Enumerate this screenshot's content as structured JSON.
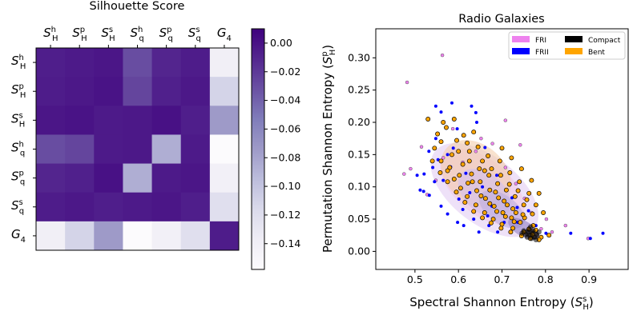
{
  "chart_data": [
    {
      "type": "heatmap",
      "title": "Silhouette Score",
      "row_labels": [
        {
          "base": "S",
          "sub": "H",
          "sup": "h"
        },
        {
          "base": "S",
          "sub": "H",
          "sup": "p"
        },
        {
          "base": "S",
          "sub": "H",
          "sup": "s"
        },
        {
          "base": "S",
          "sub": "q",
          "sup": "h"
        },
        {
          "base": "S",
          "sub": "q",
          "sup": "p"
        },
        {
          "base": "S",
          "sub": "q",
          "sup": "s"
        },
        {
          "base": "G",
          "sub": "4",
          "sup": ""
        }
      ],
      "col_labels": [
        {
          "base": "S",
          "sub": "H",
          "sup": "h"
        },
        {
          "base": "S",
          "sub": "H",
          "sup": "p"
        },
        {
          "base": "S",
          "sub": "H",
          "sup": "s"
        },
        {
          "base": "S",
          "sub": "q",
          "sup": "h"
        },
        {
          "base": "S",
          "sub": "q",
          "sup": "p"
        },
        {
          "base": "S",
          "sub": "q",
          "sup": "s"
        },
        {
          "base": "G",
          "sub": "4",
          "sup": ""
        }
      ],
      "values": [
        [
          -0.006,
          -0.004,
          -0.002,
          -0.03,
          -0.01,
          -0.005,
          -0.14
        ],
        [
          -0.005,
          -0.003,
          0.0,
          -0.026,
          -0.007,
          -0.003,
          -0.112
        ],
        [
          -0.002,
          0.0,
          -0.004,
          -0.003,
          0.001,
          -0.006,
          -0.074
        ],
        [
          -0.03,
          -0.026,
          -0.004,
          -0.003,
          -0.086,
          -0.004,
          -0.158
        ],
        [
          -0.01,
          -0.007,
          0.001,
          -0.086,
          -0.004,
          -0.002,
          -0.142
        ],
        [
          -0.005,
          -0.003,
          -0.006,
          -0.004,
          -0.002,
          -0.006,
          -0.122
        ],
        [
          -0.14,
          -0.112,
          -0.074,
          -0.158,
          -0.142,
          -0.122,
          -0.005
        ]
      ],
      "colorbar": {
        "range": [
          -0.158,
          0.01
        ],
        "ticks": [
          0.0,
          -0.02,
          -0.04,
          -0.06,
          -0.08,
          -0.1,
          -0.12,
          -0.14
        ],
        "tick_labels": [
          "0.00",
          "−0.02",
          "−0.04",
          "−0.06",
          "−0.08",
          "−0.10",
          "−0.12",
          "−0.14"
        ],
        "colormap": [
          "#fcfbfd",
          "#efedf5",
          "#dadaeb",
          "#bcbddc",
          "#9e9ac8",
          "#807dba",
          "#6a51a3",
          "#54278f",
          "#3f007d"
        ]
      }
    },
    {
      "type": "scatter",
      "title": "Radio Galaxies",
      "xlabel": {
        "text": "Spectral Shannon Entropy (",
        "base": "S",
        "sub": "H",
        "sup": "s",
        "close": ")"
      },
      "ylabel": {
        "text": "Permutation Shannon Entropy (",
        "base": "S",
        "sub": "H",
        "sup": "p",
        "close": ")"
      },
      "xlim": [
        0.41,
        0.99
      ],
      "ylim": [
        -0.028,
        0.345
      ],
      "xticks": [
        0.5,
        0.6,
        0.7,
        0.8,
        0.9
      ],
      "xtick_labels": [
        "0.5",
        "0.6",
        "0.7",
        "0.8",
        "0.9"
      ],
      "yticks": [
        0.0,
        0.05,
        0.1,
        0.15,
        0.2,
        0.25,
        0.3
      ],
      "ytick_labels": [
        "0.00",
        "0.05",
        "0.10",
        "0.15",
        "0.20",
        "0.25",
        "0.30"
      ],
      "legend_position": "top-right",
      "legend": [
        {
          "label": "FRI",
          "color": "#ee82ee"
        },
        {
          "label": "Compact",
          "color": "#000000"
        },
        {
          "label": "FRII",
          "color": "#0000ff"
        },
        {
          "label": "Bent",
          "color": "#ffa500"
        }
      ],
      "series": [
        {
          "name": "FRI",
          "color": "#ee82ee",
          "points": [
            [
              0.482,
              0.262
            ],
            [
              0.563,
              0.304
            ],
            [
              0.475,
              0.12
            ],
            [
              0.49,
              0.128
            ],
            [
              0.515,
              0.162
            ],
            [
              0.548,
              0.11
            ],
            [
              0.64,
              0.155
            ],
            [
              0.708,
              0.13
            ],
            [
              0.752,
              0.082
            ],
            [
              0.802,
              0.05
            ],
            [
              0.708,
              0.203
            ],
            [
              0.742,
              0.165
            ],
            [
              0.768,
              0.06
            ],
            [
              0.678,
              0.167
            ],
            [
              0.528,
              0.088
            ],
            [
              0.61,
              0.138
            ],
            [
              0.846,
              0.04
            ],
            [
              0.815,
              0.03
            ],
            [
              0.732,
              0.105
            ],
            [
              0.565,
              0.145
            ],
            [
              0.587,
              0.19
            ],
            [
              0.652,
              0.175
            ],
            [
              0.79,
              0.035
            ],
            [
              0.898,
              0.02
            ]
          ]
        },
        {
          "name": "FRII",
          "color": "#0000ff",
          "points": [
            [
              0.548,
              0.225
            ],
            [
              0.56,
              0.216
            ],
            [
              0.585,
              0.23
            ],
            [
              0.63,
              0.225
            ],
            [
              0.64,
              0.215
            ],
            [
              0.642,
              0.2
            ],
            [
              0.588,
              0.16
            ],
            [
              0.548,
              0.175
            ],
            [
              0.532,
              0.155
            ],
            [
              0.505,
              0.118
            ],
            [
              0.512,
              0.095
            ],
            [
              0.52,
              0.093
            ],
            [
              0.533,
              0.087
            ],
            [
              0.545,
              0.108
            ],
            [
              0.56,
              0.07
            ],
            [
              0.575,
              0.058
            ],
            [
              0.598,
              0.045
            ],
            [
              0.612,
              0.04
            ],
            [
              0.635,
              0.05
            ],
            [
              0.647,
              0.03
            ],
            [
              0.667,
              0.055
            ],
            [
              0.67,
              0.04
            ],
            [
              0.69,
              0.03
            ],
            [
              0.705,
              0.045
            ],
            [
              0.736,
              0.045
            ],
            [
              0.778,
              0.04
            ],
            [
              0.801,
              0.028
            ],
            [
              0.858,
              0.028
            ],
            [
              0.903,
              0.02
            ],
            [
              0.932,
              0.028
            ],
            [
              0.553,
              0.142
            ],
            [
              0.582,
              0.131
            ],
            [
              0.617,
              0.121
            ],
            [
              0.655,
              0.1
            ],
            [
              0.601,
              0.081
            ],
            [
              0.626,
              0.091
            ],
            [
              0.677,
              0.07
            ],
            [
              0.521,
              0.12
            ],
            [
              0.597,
              0.19
            ],
            [
              0.661,
              0.161
            ],
            [
              0.575,
              0.15
            ],
            [
              0.541,
              0.13
            ],
            [
              0.688,
              0.118
            ],
            [
              0.723,
              0.083
            ],
            [
              0.761,
              0.063
            ],
            [
              0.565,
              0.11
            ],
            [
              0.61,
              0.065
            ],
            [
              0.735,
              0.068
            ]
          ]
        },
        {
          "name": "Bent",
          "color": "#ffa500",
          "points": [
            [
              0.53,
              0.205
            ],
            [
              0.552,
              0.182
            ],
            [
              0.572,
              0.192
            ],
            [
              0.596,
              0.172
            ],
            [
              0.62,
              0.168
            ],
            [
              0.645,
              0.162
            ],
            [
              0.668,
              0.148
            ],
            [
              0.695,
              0.14
            ],
            [
              0.718,
              0.122
            ],
            [
              0.74,
              0.108
            ],
            [
              0.762,
              0.09
            ],
            [
              0.778,
              0.072
            ],
            [
              0.545,
              0.16
            ],
            [
              0.56,
              0.14
            ],
            [
              0.575,
              0.125
            ],
            [
              0.59,
              0.112
            ],
            [
              0.605,
              0.098
            ],
            [
              0.62,
              0.085
            ],
            [
              0.64,
              0.072
            ],
            [
              0.66,
              0.06
            ],
            [
              0.68,
              0.05
            ],
            [
              0.7,
              0.042
            ],
            [
              0.725,
              0.036
            ],
            [
              0.75,
              0.03
            ],
            [
              0.77,
              0.026
            ],
            [
              0.79,
              0.022
            ],
            [
              0.56,
              0.17
            ],
            [
              0.585,
              0.15
            ],
            [
              0.61,
              0.135
            ],
            [
              0.63,
              0.12
            ],
            [
              0.65,
              0.108
            ],
            [
              0.672,
              0.095
            ],
            [
              0.692,
              0.083
            ],
            [
              0.712,
              0.072
            ],
            [
              0.732,
              0.06
            ],
            [
              0.752,
              0.052
            ],
            [
              0.772,
              0.04
            ],
            [
              0.6,
              0.155
            ],
            [
              0.625,
              0.14
            ],
            [
              0.648,
              0.128
            ],
            [
              0.67,
              0.118
            ],
            [
              0.69,
              0.105
            ],
            [
              0.71,
              0.095
            ],
            [
              0.73,
              0.085
            ],
            [
              0.75,
              0.072
            ],
            [
              0.77,
              0.058
            ],
            [
              0.58,
              0.13
            ],
            [
              0.602,
              0.118
            ],
            [
              0.622,
              0.106
            ],
            [
              0.642,
              0.094
            ],
            [
              0.662,
              0.082
            ],
            [
              0.682,
              0.07
            ],
            [
              0.702,
              0.06
            ],
            [
              0.722,
              0.052
            ],
            [
              0.742,
              0.045
            ],
            [
              0.762,
              0.035
            ],
            [
              0.655,
              0.14
            ],
            [
              0.676,
              0.128
            ],
            [
              0.697,
              0.118
            ],
            [
              0.717,
              0.104
            ],
            [
              0.737,
              0.094
            ],
            [
              0.757,
              0.08
            ],
            [
              0.54,
              0.14
            ],
            [
              0.558,
              0.122
            ],
            [
              0.575,
              0.108
            ],
            [
              0.595,
              0.092
            ],
            [
              0.615,
              0.076
            ],
            [
              0.635,
              0.062
            ],
            [
              0.655,
              0.052
            ],
            [
              0.675,
              0.044
            ],
            [
              0.698,
              0.036
            ],
            [
              0.72,
              0.03
            ],
            [
              0.745,
              0.024
            ],
            [
              0.765,
              0.02
            ],
            [
              0.785,
              0.018
            ],
            [
              0.612,
              0.18
            ],
            [
              0.635,
              0.185
            ],
            [
              0.7,
              0.16
            ],
            [
              0.722,
              0.145
            ],
            [
              0.745,
              0.128
            ],
            [
              0.768,
              0.11
            ],
            [
              0.785,
              0.09
            ],
            [
              0.795,
              0.06
            ],
            [
              0.565,
              0.2
            ],
            [
              0.59,
              0.205
            ],
            [
              0.625,
              0.155
            ],
            [
              0.66,
              0.125
            ],
            [
              0.685,
              0.092
            ],
            [
              0.705,
              0.078
            ],
            [
              0.725,
              0.066
            ],
            [
              0.748,
              0.057
            ],
            [
              0.778,
              0.033
            ],
            [
              0.808,
              0.025
            ],
            [
              0.632,
              0.108
            ],
            [
              0.652,
              0.086
            ],
            [
              0.672,
              0.074
            ],
            [
              0.688,
              0.062
            ],
            [
              0.708,
              0.054
            ],
            [
              0.728,
              0.046
            ]
          ]
        },
        {
          "name": "Compact",
          "color": "#000000",
          "points": [
            [
              0.76,
              0.03
            ],
            [
              0.765,
              0.025
            ],
            [
              0.77,
              0.028
            ],
            [
              0.775,
              0.022
            ],
            [
              0.755,
              0.026
            ],
            [
              0.78,
              0.026
            ],
            [
              0.768,
              0.02
            ],
            [
              0.762,
              0.034
            ],
            [
              0.772,
              0.032
            ],
            [
              0.758,
              0.022
            ],
            [
              0.785,
              0.03
            ],
            [
              0.75,
              0.032
            ],
            [
              0.778,
              0.018
            ],
            [
              0.766,
              0.038
            ],
            [
              0.746,
              0.028
            ]
          ]
        }
      ]
    }
  ]
}
